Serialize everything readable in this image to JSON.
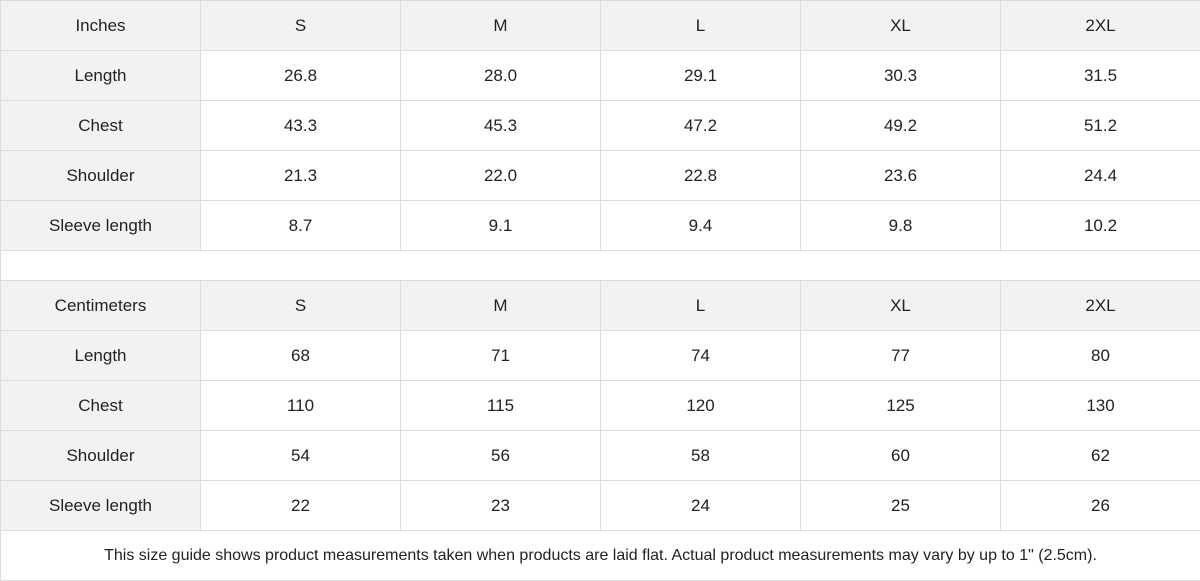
{
  "inches": {
    "header": [
      "Inches",
      "S",
      "M",
      "L",
      "XL",
      "2XL"
    ],
    "rows": [
      {
        "label": "Length",
        "values": [
          "26.8",
          "28.0",
          "29.1",
          "30.3",
          "31.5"
        ]
      },
      {
        "label": "Chest",
        "values": [
          "43.3",
          "45.3",
          "47.2",
          "49.2",
          "51.2"
        ]
      },
      {
        "label": "Shoulder",
        "values": [
          "21.3",
          "22.0",
          "22.8",
          "23.6",
          "24.4"
        ]
      },
      {
        "label": "Sleeve length",
        "values": [
          "8.7",
          "9.1",
          "9.4",
          "9.8",
          "10.2"
        ]
      }
    ]
  },
  "centimeters": {
    "header": [
      "Centimeters",
      "S",
      "M",
      "L",
      "XL",
      "2XL"
    ],
    "rows": [
      {
        "label": "Length",
        "values": [
          "68",
          "71",
          "74",
          "77",
          "80"
        ]
      },
      {
        "label": "Chest",
        "values": [
          "110",
          "115",
          "120",
          "125",
          "130"
        ]
      },
      {
        "label": "Shoulder",
        "values": [
          "54",
          "56",
          "58",
          "60",
          "62"
        ]
      },
      {
        "label": "Sleeve length",
        "values": [
          "22",
          "23",
          "24",
          "25",
          "26"
        ]
      }
    ]
  },
  "note": "This size guide shows product measurements taken when products are laid flat.  Actual product measurements may vary by up to 1\" (2.5cm).",
  "colors": {
    "header_bg": "#f2f2f2",
    "border": "#dcdcdc",
    "text": "#222222"
  }
}
